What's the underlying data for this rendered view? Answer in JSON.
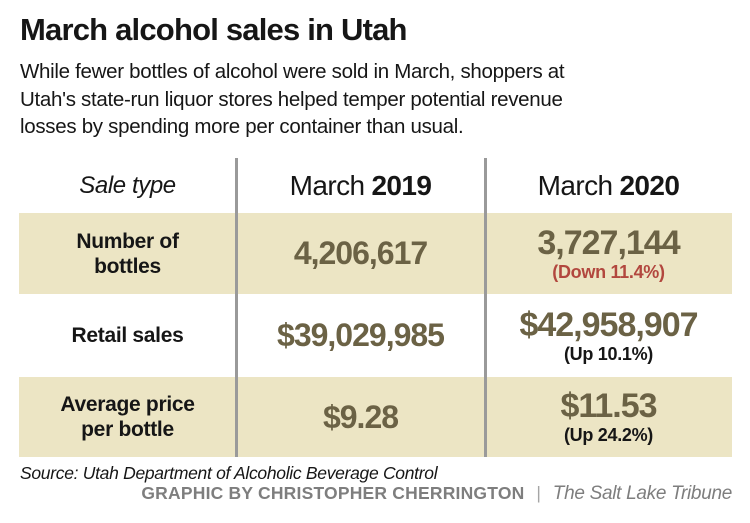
{
  "title": "March alcohol sales in Utah",
  "subtitle_lines": [
    "While fewer bottles of alcohol were sold in March, shoppers at",
    "Utah's state-run liquor stores helped temper potential revenue",
    "losses by spending more per container than usual."
  ],
  "table": {
    "header": {
      "sale_type": "Sale type",
      "col2019_month": "March",
      "col2019_year": "2019",
      "col2020_month": "March",
      "col2020_year": "2020"
    },
    "rows": [
      {
        "label": "Number of bottles",
        "v2019": "4,206,617",
        "v2020": "3,727,144",
        "change": "(Down 11.4%)",
        "direction": "down"
      },
      {
        "label": "Retail sales",
        "v2019": "$39,029,985",
        "v2020": "$42,958,907",
        "change": "(Up 10.1%)",
        "direction": "up"
      },
      {
        "label": "Average price per bottle",
        "v2019": "$9.28",
        "v2020": "$11.53",
        "change": "(Up 24.2%)",
        "direction": "up"
      }
    ]
  },
  "footer": {
    "source": "Source: Utah Department of Alcoholic Beverage Control",
    "credit": "GRAPHIC BY CHRISTOPHER CHERRINGTON",
    "separator": "|",
    "publication": "The Salt Lake Tribune"
  },
  "colors": {
    "row_beige": "#ece5c4",
    "value_olive": "#6b6245",
    "down_red": "#b2473e",
    "divider_gray": "#9a9a9a",
    "credit_gray": "#7e7e7e",
    "text_black": "#161616"
  },
  "chart_data": {
    "type": "table",
    "title": "March alcohol sales in Utah",
    "columns": [
      "Sale type",
      "March 2019",
      "March 2020"
    ],
    "rows": [
      {
        "sale_type": "Number of bottles",
        "march_2019": 4206617,
        "march_2020": 3727144,
        "change_pct": -11.4
      },
      {
        "sale_type": "Retail sales",
        "march_2019": 39029985,
        "march_2020": 42958907,
        "change_pct": 10.1
      },
      {
        "sale_type": "Average price per bottle",
        "march_2019": 9.28,
        "march_2020": 11.53,
        "change_pct": 24.2
      }
    ],
    "source": "Utah Department of Alcoholic Beverage Control"
  }
}
